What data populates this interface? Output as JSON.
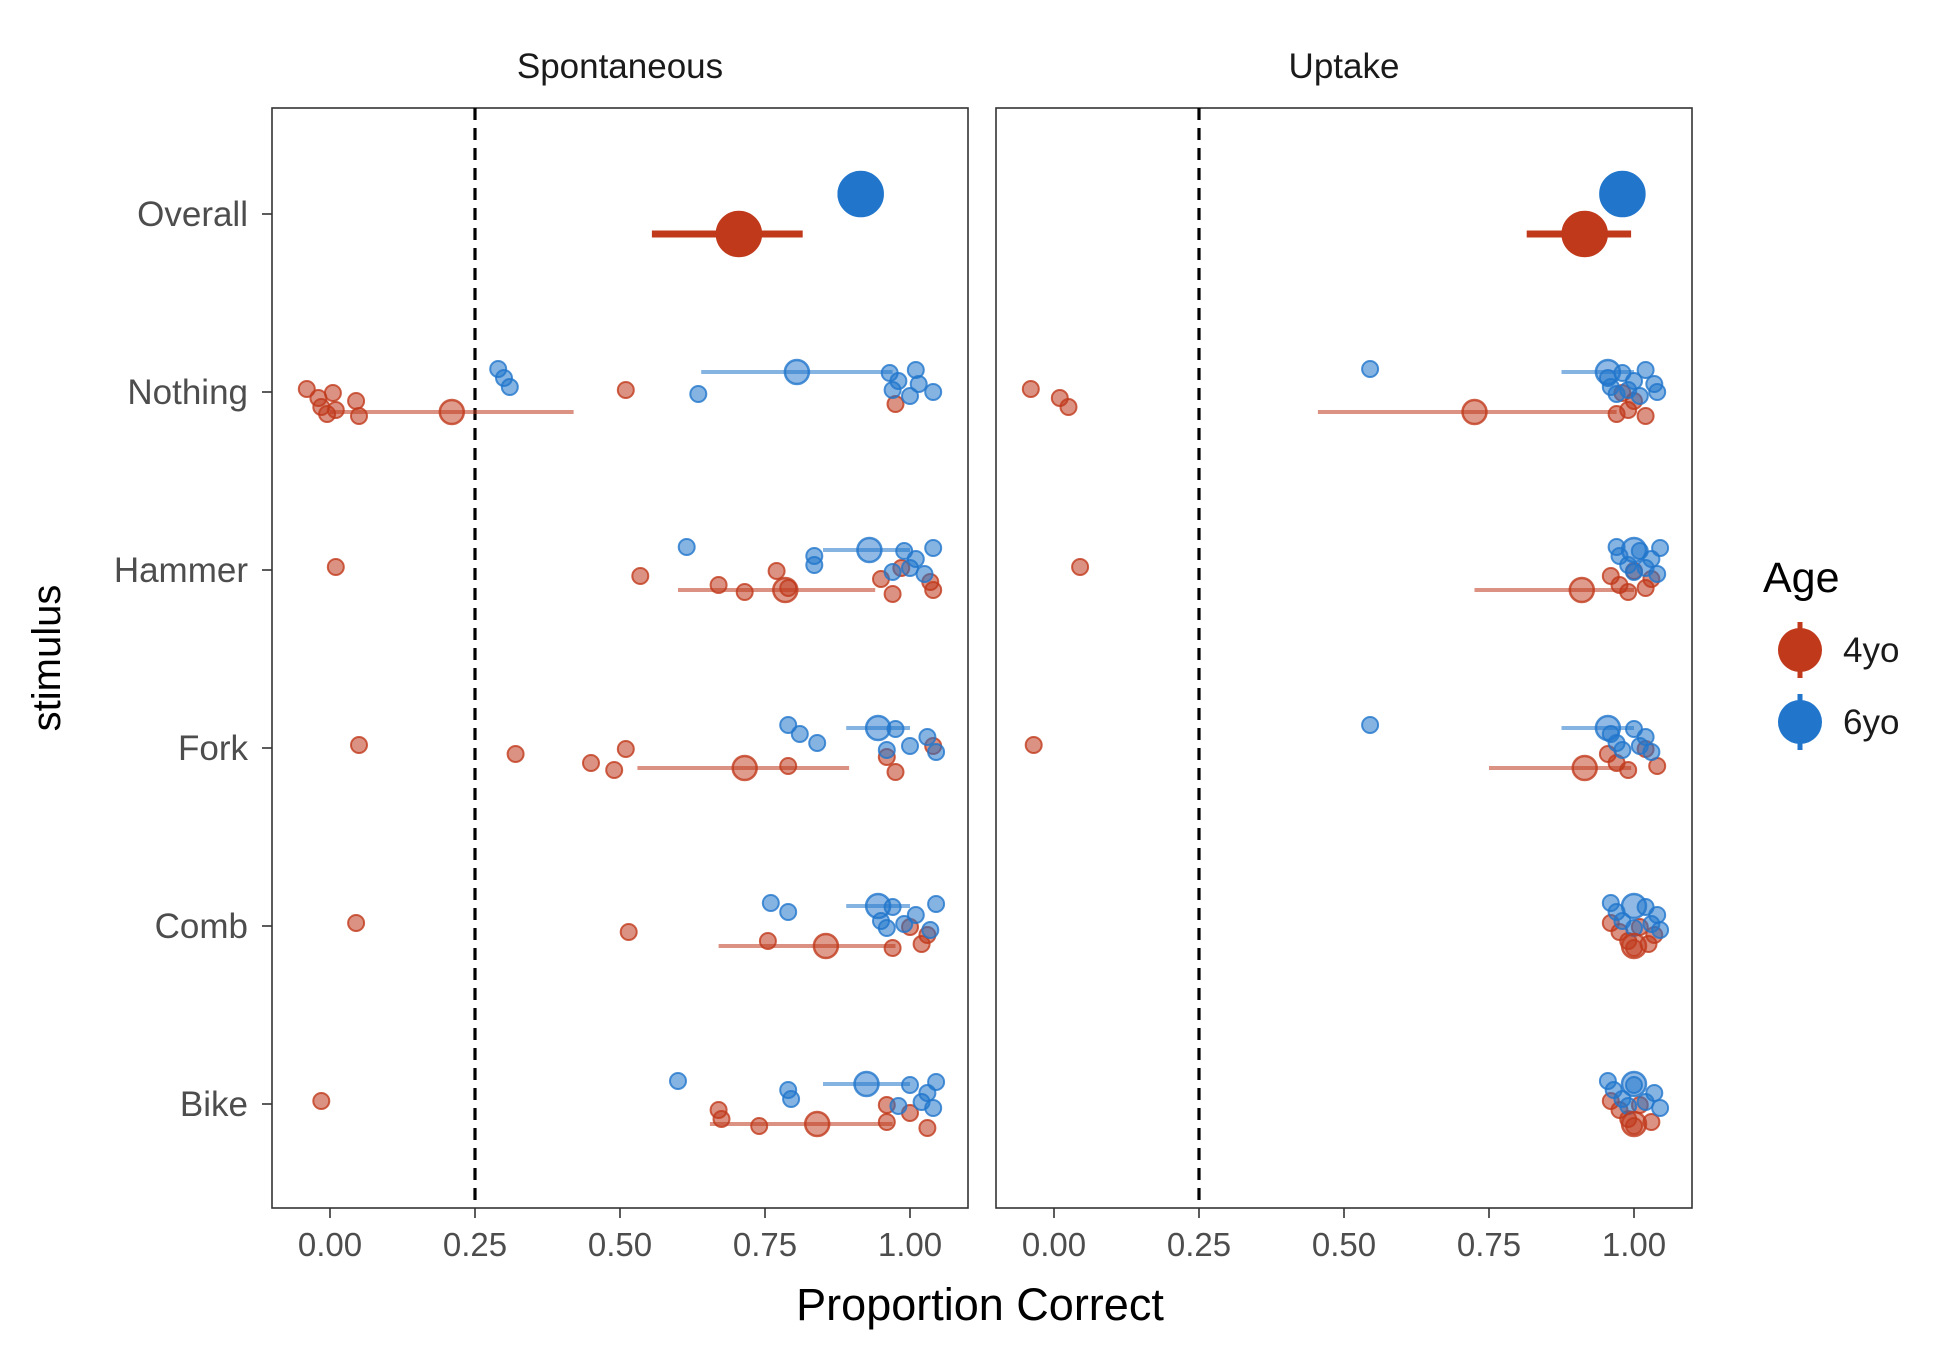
{
  "chart_data": {
    "type": "scatter",
    "xlabel": "Proportion Correct",
    "ylabel": "stimulus",
    "xlim": [
      -0.1,
      1.1
    ],
    "x_ticks": [
      "0.00",
      "0.25",
      "0.50",
      "0.75",
      "1.00"
    ],
    "x_tick_values": [
      0,
      0.25,
      0.5,
      0.75,
      1.0
    ],
    "reference_line": 0.25,
    "categories": [
      "Overall",
      "Nothing",
      "Hammer",
      "Fork",
      "Comb",
      "Bike"
    ],
    "legend": {
      "title": "Age",
      "position": "right",
      "entries": [
        "4yo",
        "6yo"
      ]
    },
    "colors": {
      "4yo": "#C0391B",
      "6yo": "#2176CC"
    },
    "grid": false,
    "panels": [
      {
        "title": "Spontaneous",
        "summary": [
          {
            "stimulus": "Overall",
            "group": "4yo",
            "mean": 0.705,
            "ci": [
              0.555,
              0.815
            ]
          },
          {
            "stimulus": "Overall",
            "group": "6yo",
            "mean": 0.915,
            "ci": [
              0.875,
              0.935
            ]
          },
          {
            "stimulus": "Nothing",
            "group": "4yo",
            "mean": 0.21,
            "ci": [
              0.0,
              0.42
            ]
          },
          {
            "stimulus": "Nothing",
            "group": "6yo",
            "mean": 0.805,
            "ci": [
              0.64,
              0.97
            ]
          },
          {
            "stimulus": "Hammer",
            "group": "4yo",
            "mean": 0.785,
            "ci": [
              0.6,
              0.94
            ]
          },
          {
            "stimulus": "Hammer",
            "group": "6yo",
            "mean": 0.93,
            "ci": [
              0.85,
              1.0
            ]
          },
          {
            "stimulus": "Fork",
            "group": "4yo",
            "mean": 0.715,
            "ci": [
              0.53,
              0.895
            ]
          },
          {
            "stimulus": "Fork",
            "group": "6yo",
            "mean": 0.945,
            "ci": [
              0.89,
              1.0
            ]
          },
          {
            "stimulus": "Comb",
            "group": "4yo",
            "mean": 0.855,
            "ci": [
              0.67,
              0.975
            ]
          },
          {
            "stimulus": "Comb",
            "group": "6yo",
            "mean": 0.945,
            "ci": [
              0.89,
              1.0
            ]
          },
          {
            "stimulus": "Bike",
            "group": "4yo",
            "mean": 0.84,
            "ci": [
              0.655,
              0.97
            ]
          },
          {
            "stimulus": "Bike",
            "group": "6yo",
            "mean": 0.925,
            "ci": [
              0.85,
              1.0
            ]
          }
        ],
        "points": [
          {
            "stimulus": "Nothing",
            "group": "4yo",
            "x": [
              -0.04,
              -0.02,
              -0.015,
              -0.005,
              0.005,
              0.01,
              0.045,
              0.05,
              0.51,
              0.975
            ]
          },
          {
            "stimulus": "Nothing",
            "group": "6yo",
            "x": [
              0.29,
              0.3,
              0.31,
              0.635,
              0.965,
              0.97,
              0.98,
              1.0,
              1.01,
              1.015,
              1.04
            ]
          },
          {
            "stimulus": "Hammer",
            "group": "4yo",
            "x": [
              0.01,
              0.535,
              0.67,
              0.715,
              0.77,
              0.79,
              0.95,
              0.97,
              0.985,
              1.035,
              1.04
            ]
          },
          {
            "stimulus": "Hammer",
            "group": "6yo",
            "x": [
              0.615,
              0.835,
              0.835,
              0.97,
              0.99,
              1.0,
              1.01,
              1.025,
              1.04
            ]
          },
          {
            "stimulus": "Fork",
            "group": "4yo",
            "x": [
              0.05,
              0.32,
              0.45,
              0.49,
              0.51,
              0.79,
              0.96,
              0.975,
              1.04
            ]
          },
          {
            "stimulus": "Fork",
            "group": "6yo",
            "x": [
              0.79,
              0.81,
              0.84,
              0.96,
              0.975,
              1.0,
              1.03,
              1.045
            ]
          },
          {
            "stimulus": "Comb",
            "group": "4yo",
            "x": [
              0.045,
              0.515,
              0.755,
              0.97,
              1.0,
              1.02,
              1.03
            ]
          },
          {
            "stimulus": "Comb",
            "group": "6yo",
            "x": [
              0.76,
              0.79,
              0.95,
              0.96,
              0.97,
              0.99,
              1.01,
              1.035,
              1.045
            ]
          },
          {
            "stimulus": "Bike",
            "group": "4yo",
            "x": [
              -0.015,
              0.67,
              0.675,
              0.74,
              0.96,
              0.96,
              1.0,
              1.03
            ]
          },
          {
            "stimulus": "Bike",
            "group": "6yo",
            "x": [
              0.6,
              0.79,
              0.795,
              0.98,
              1.0,
              1.02,
              1.03,
              1.04,
              1.045
            ]
          }
        ]
      },
      {
        "title": "Uptake",
        "summary": [
          {
            "stimulus": "Overall",
            "group": "4yo",
            "mean": 0.915,
            "ci": [
              0.815,
              0.995
            ]
          },
          {
            "stimulus": "Overall",
            "group": "6yo",
            "mean": 0.98,
            "ci": [
              0.97,
              0.99
            ]
          },
          {
            "stimulus": "Nothing",
            "group": "4yo",
            "mean": 0.725,
            "ci": [
              0.455,
              0.97
            ]
          },
          {
            "stimulus": "Nothing",
            "group": "6yo",
            "mean": 0.955,
            "ci": [
              0.875,
              1.0
            ]
          },
          {
            "stimulus": "Hammer",
            "group": "4yo",
            "mean": 0.91,
            "ci": [
              0.725,
              1.0
            ]
          },
          {
            "stimulus": "Hammer",
            "group": "6yo",
            "mean": 1.0,
            "ci": [
              1.0,
              1.0
            ]
          },
          {
            "stimulus": "Fork",
            "group": "4yo",
            "mean": 0.915,
            "ci": [
              0.75,
              0.995
            ]
          },
          {
            "stimulus": "Fork",
            "group": "6yo",
            "mean": 0.955,
            "ci": [
              0.875,
              1.0
            ]
          },
          {
            "stimulus": "Comb",
            "group": "4yo",
            "mean": 1.0,
            "ci": [
              1.0,
              1.0
            ]
          },
          {
            "stimulus": "Comb",
            "group": "6yo",
            "mean": 1.0,
            "ci": [
              1.0,
              1.0
            ]
          },
          {
            "stimulus": "Bike",
            "group": "4yo",
            "mean": 1.0,
            "ci": [
              1.0,
              1.0
            ]
          },
          {
            "stimulus": "Bike",
            "group": "6yo",
            "mean": 1.0,
            "ci": [
              1.0,
              1.0
            ]
          }
        ],
        "points": [
          {
            "stimulus": "Nothing",
            "group": "4yo",
            "x": [
              -0.04,
              0.01,
              0.025,
              0.97,
              0.98,
              0.99,
              1.0,
              1.02
            ]
          },
          {
            "stimulus": "Nothing",
            "group": "6yo",
            "x": [
              0.545,
              0.955,
              0.96,
              0.97,
              0.98,
              0.99,
              1.0,
              1.01,
              1.02,
              1.035,
              1.04
            ]
          },
          {
            "stimulus": "Hammer",
            "group": "4yo",
            "x": [
              0.045,
              0.96,
              0.975,
              0.99,
              1.0,
              1.02,
              1.03
            ]
          },
          {
            "stimulus": "Hammer",
            "group": "6yo",
            "x": [
              0.97,
              0.975,
              0.99,
              1.0,
              1.01,
              1.02,
              1.03,
              1.04,
              1.045
            ]
          },
          {
            "stimulus": "Fork",
            "group": "4yo",
            "x": [
              -0.035,
              0.955,
              0.97,
              0.99,
              1.02,
              1.04
            ]
          },
          {
            "stimulus": "Fork",
            "group": "6yo",
            "x": [
              0.545,
              0.96,
              0.97,
              0.98,
              1.0,
              1.01,
              1.02,
              1.03
            ]
          },
          {
            "stimulus": "Comb",
            "group": "4yo",
            "x": [
              0.96,
              0.975,
              0.99,
              1.0,
              1.01,
              1.025,
              1.035
            ]
          },
          {
            "stimulus": "Comb",
            "group": "6yo",
            "x": [
              0.96,
              0.97,
              0.98,
              1.0,
              1.02,
              1.03,
              1.04,
              1.045
            ]
          },
          {
            "stimulus": "Bike",
            "group": "4yo",
            "x": [
              0.96,
              0.975,
              0.99,
              1.0,
              1.01,
              1.03
            ]
          },
          {
            "stimulus": "Bike",
            "group": "6yo",
            "x": [
              0.955,
              0.965,
              0.98,
              0.99,
              1.0,
              1.02,
              1.035,
              1.045
            ]
          }
        ]
      }
    ]
  }
}
